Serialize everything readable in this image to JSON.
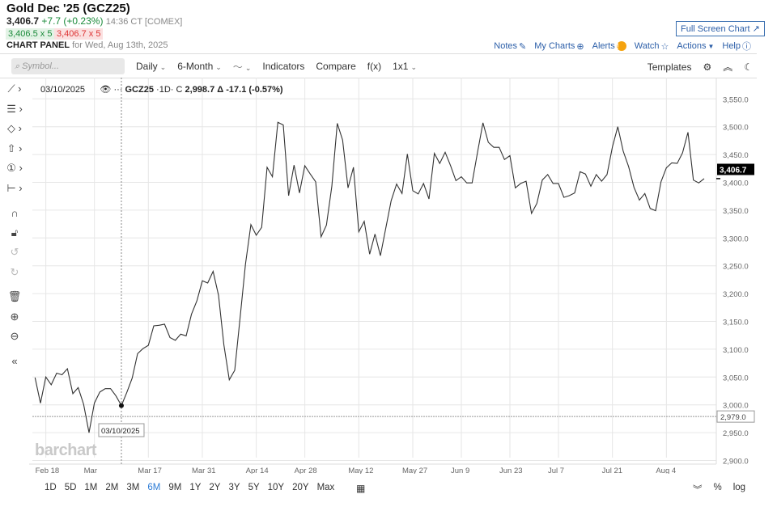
{
  "header": {
    "title": "Gold Dec '25 (GCZ25)",
    "last": "3,406.7",
    "change": "+7.7 (+0.23%)",
    "time": "14:36 CT [COMEX]",
    "bid": "3,406.5 x 5",
    "ask": "3,406.7 x 5",
    "panel_label": "CHART PANEL",
    "panel_date": "for Wed, Aug 13th, 2025"
  },
  "top_links": {
    "full_screen": "Full Screen Chart",
    "notes": "Notes",
    "my_charts": "My Charts",
    "alerts": "Alerts",
    "watch": "Watch",
    "actions": "Actions",
    "help": "Help"
  },
  "toolbar": {
    "search_placeholder": "Symbol...",
    "interval": "Daily",
    "period": "6-Month",
    "chart_type_icon": "line-chart-icon",
    "indicators": "Indicators",
    "compare": "Compare",
    "fx": "f(x)",
    "layout": "1x1",
    "templates": "Templates"
  },
  "left_tools": [
    "line-tool-icon",
    "fib-tool-icon",
    "shape-tool-icon",
    "arrow-tool-icon",
    "annotation-tool-icon",
    "measure-tool-icon",
    "magnet-icon",
    "lock-icon",
    "undo-icon",
    "redo-icon",
    "trash-icon",
    "zoom-in-icon",
    "zoom-out-icon",
    "collapse-icon"
  ],
  "legend": {
    "date": "03/10/2025",
    "symbol": "GCZ25",
    "interval": "1D",
    "close_label": "C",
    "close": "2,998.7",
    "delta": "Δ -17.1 (-0.57%)"
  },
  "crosshair_date": "03/10/2025",
  "logo": "barchart",
  "range_buttons": [
    "1D",
    "5D",
    "1M",
    "2M",
    "3M",
    "6M",
    "9M",
    "1Y",
    "2Y",
    "3Y",
    "5Y",
    "10Y",
    "20Y",
    "Max"
  ],
  "active_range": "6M",
  "bottom_right": {
    "percent": "%",
    "log": "log"
  },
  "colors": {
    "line": "#333333",
    "up": "#1a8a3a",
    "down": "#d33333",
    "link": "#2b5ea8",
    "active": "#2b7bd6"
  },
  "chart_data": {
    "type": "line",
    "grid": true,
    "ylim": [
      2900,
      3550
    ],
    "y_ticks": [
      "2,900.0",
      "2,950.0",
      "3,000.0",
      "3,050.0",
      "3,100.0",
      "3,150.0",
      "3,200.0",
      "3,250.0",
      "3,300.0",
      "3,350.0",
      "3,400.0",
      "3,450.0",
      "3,500.0",
      "3,550.0"
    ],
    "x_ticks": [
      {
        "label": "Feb 18",
        "date": "2025-02-18"
      },
      {
        "label": "Mar",
        "date": "2025-03-03"
      },
      {
        "label": "Mar 17",
        "date": "2025-03-17"
      },
      {
        "label": "Mar 31",
        "date": "2025-03-31"
      },
      {
        "label": "Apr 14",
        "date": "2025-04-14"
      },
      {
        "label": "Apr 28",
        "date": "2025-04-28"
      },
      {
        "label": "May 12",
        "date": "2025-05-12"
      },
      {
        "label": "May 27",
        "date": "2025-05-27"
      },
      {
        "label": "Jun 9",
        "date": "2025-06-09"
      },
      {
        "label": "Jun 23",
        "date": "2025-06-23"
      },
      {
        "label": "Jul 7",
        "date": "2025-07-07"
      },
      {
        "label": "Jul 21",
        "date": "2025-07-21"
      },
      {
        "label": "Aug 4",
        "date": "2025-08-04"
      }
    ],
    "last_price": "3,406.7",
    "last_value": 3406.7,
    "reference_line": {
      "label": "2,979.0",
      "value": 2979.0
    },
    "highlight": {
      "date": "2025-03-10",
      "value": 2998.7
    },
    "dates": [
      "2025-02-13",
      "2025-02-14",
      "2025-02-18",
      "2025-02-19",
      "2025-02-20",
      "2025-02-21",
      "2025-02-24",
      "2025-02-25",
      "2025-02-26",
      "2025-02-27",
      "2025-02-28",
      "2025-03-03",
      "2025-03-04",
      "2025-03-05",
      "2025-03-06",
      "2025-03-07",
      "2025-03-10",
      "2025-03-11",
      "2025-03-12",
      "2025-03-13",
      "2025-03-14",
      "2025-03-17",
      "2025-03-18",
      "2025-03-19",
      "2025-03-20",
      "2025-03-21",
      "2025-03-24",
      "2025-03-25",
      "2025-03-26",
      "2025-03-27",
      "2025-03-28",
      "2025-03-31",
      "2025-04-01",
      "2025-04-02",
      "2025-04-03",
      "2025-04-04",
      "2025-04-07",
      "2025-04-08",
      "2025-04-09",
      "2025-04-10",
      "2025-04-11",
      "2025-04-14",
      "2025-04-15",
      "2025-04-16",
      "2025-04-17",
      "2025-04-21",
      "2025-04-22",
      "2025-04-23",
      "2025-04-24",
      "2025-04-25",
      "2025-04-28",
      "2025-04-29",
      "2025-04-30",
      "2025-05-01",
      "2025-05-02",
      "2025-05-05",
      "2025-05-06",
      "2025-05-07",
      "2025-05-08",
      "2025-05-09",
      "2025-05-12",
      "2025-05-13",
      "2025-05-14",
      "2025-05-15",
      "2025-05-16",
      "2025-05-19",
      "2025-05-20",
      "2025-05-21",
      "2025-05-22",
      "2025-05-23",
      "2025-05-27",
      "2025-05-28",
      "2025-05-29",
      "2025-05-30",
      "2025-06-02",
      "2025-06-03",
      "2025-06-04",
      "2025-06-05",
      "2025-06-06",
      "2025-06-09",
      "2025-06-10",
      "2025-06-11",
      "2025-06-12",
      "2025-06-13",
      "2025-06-16",
      "2025-06-17",
      "2025-06-18",
      "2025-06-20",
      "2025-06-23",
      "2025-06-24",
      "2025-06-25",
      "2025-06-26",
      "2025-06-27",
      "2025-06-30",
      "2025-07-01",
      "2025-07-02",
      "2025-07-03",
      "2025-07-07",
      "2025-07-08",
      "2025-07-09",
      "2025-07-10",
      "2025-07-11",
      "2025-07-14",
      "2025-07-15",
      "2025-07-16",
      "2025-07-17",
      "2025-07-18",
      "2025-07-21",
      "2025-07-22",
      "2025-07-23",
      "2025-07-24",
      "2025-07-25",
      "2025-07-28",
      "2025-07-29",
      "2025-07-30",
      "2025-07-31",
      "2025-08-01",
      "2025-08-04",
      "2025-08-05",
      "2025-08-06",
      "2025-08-07",
      "2025-08-08",
      "2025-08-11",
      "2025-08-12",
      "2025-08-13"
    ],
    "values": [
      3049,
      3003,
      3050,
      3036,
      3057,
      3054,
      3065,
      3020,
      3031,
      3001,
      2950,
      3003,
      3023,
      3029,
      3029,
      3016,
      2998.7,
      3022,
      3048,
      3092,
      3101,
      3107,
      3142,
      3143,
      3145,
      3121,
      3116,
      3127,
      3124,
      3163,
      3187,
      3223,
      3219,
      3240,
      3197,
      3108,
      3045,
      3062,
      3156,
      3253,
      3324,
      3305,
      3319,
      3427,
      3410,
      3508,
      3503,
      3376,
      3431,
      3381,
      3430,
      3415,
      3401,
      3302,
      3323,
      3393,
      3506,
      3476,
      3390,
      3427,
      3311,
      3330,
      3271,
      3307,
      3268,
      3318,
      3367,
      3397,
      3380,
      3451,
      3385,
      3379,
      3398,
      3370,
      3452,
      3434,
      3454,
      3430,
      3403,
      3410,
      3399,
      3399,
      3454,
      3507,
      3472,
      3463,
      3463,
      3441,
      3448,
      3390,
      3398,
      3402,
      3344,
      3362,
      3404,
      3414,
      3398,
      3398,
      3373,
      3376,
      3381,
      3419,
      3415,
      3393,
      3414,
      3402,
      3414,
      3464,
      3500,
      3456,
      3428,
      3391,
      3368,
      3380,
      3353,
      3349,
      3401,
      3426,
      3435,
      3434,
      3453,
      3490,
      3404,
      3399,
      3406.7
    ]
  }
}
